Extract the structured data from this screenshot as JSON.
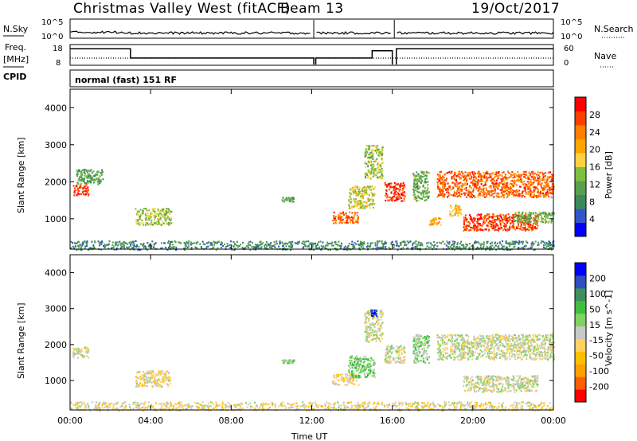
{
  "header": {
    "title": "Christmas Valley West (fitACF)",
    "beam": "Beam 13",
    "date": "19/Oct/2017"
  },
  "panels": {
    "nsky_label": "N.Sky",
    "nsky_ticks": [
      "10^5",
      "10^0"
    ],
    "nsearch_label": "N.Search",
    "nsearch_ticks": [
      "10^5",
      "10^0"
    ],
    "freq_label": "Freq.",
    "freq_unit": "[MHz]",
    "freq_ticks": [
      "18",
      "8"
    ],
    "nave_label": "Nave",
    "nave_ticks": [
      "60",
      "0"
    ],
    "cpid_label": "CPID",
    "cpid_text": "normal (fast) 151 RF"
  },
  "colors": {
    "power": [
      "#0000ff",
      "#3355cc",
      "#3b8a5a",
      "#58a050",
      "#7fbf3f",
      "#ffd23f",
      "#ffa500",
      "#ff7f00",
      "#ff3f00",
      "#ff0000"
    ],
    "velocity": [
      "#ff0000",
      "#ff5f00",
      "#ff9f00",
      "#ffbf00",
      "#ffd25f",
      "#c8c8c8",
      "#7fd35f",
      "#3fbf3f",
      "#3f8f5f",
      "#2f4fbf",
      "#0000ff"
    ]
  },
  "chart_data": [
    {
      "type": "heatmap",
      "name": "power",
      "ylabel": "Slant Range [km]",
      "colorbar_label": "Power [dB]",
      "colorbar_ticks": [
        "28",
        "24",
        "20",
        "16",
        "12",
        "8",
        "4"
      ],
      "colorbar_range": [
        0,
        30
      ],
      "x_ticks": [
        "00:00",
        "04:00",
        "08:00",
        "12:00",
        "16:00",
        "20:00",
        "00:00"
      ],
      "x_range_hours": [
        0,
        24
      ],
      "y_ticks": [
        "4000",
        "3000",
        "2000",
        "1000"
      ],
      "y_range_km": [
        180,
        4500
      ],
      "regions": [
        {
          "t": [
            0.1,
            0.9
          ],
          "r": [
            1650,
            1950
          ],
          "v": 26
        },
        {
          "t": [
            0.3,
            1.6
          ],
          "r": [
            1950,
            2350
          ],
          "v": 10
        },
        {
          "t": [
            3.2,
            5.0
          ],
          "r": [
            850,
            1300
          ],
          "v": 14
        },
        {
          "t": [
            10.5,
            11.1
          ],
          "r": [
            1480,
            1600
          ],
          "v": 10
        },
        {
          "t": [
            13.0,
            14.3
          ],
          "r": [
            900,
            1200
          ],
          "v": 24
        },
        {
          "t": [
            13.8,
            15.1
          ],
          "r": [
            1300,
            1900
          ],
          "v": 16
        },
        {
          "t": [
            14.6,
            15.5
          ],
          "r": [
            2100,
            3000
          ],
          "v": 14
        },
        {
          "t": [
            15.6,
            16.6
          ],
          "r": [
            1500,
            2000
          ],
          "v": 26
        },
        {
          "t": [
            17.0,
            17.8
          ],
          "r": [
            1500,
            2300
          ],
          "v": 12
        },
        {
          "t": [
            17.8,
            18.4
          ],
          "r": [
            850,
            1050
          ],
          "v": 20
        },
        {
          "t": [
            18.2,
            24.0
          ],
          "r": [
            1600,
            2300
          ],
          "v": 24
        },
        {
          "t": [
            18.8,
            19.4
          ],
          "r": [
            1100,
            1400
          ],
          "v": 18
        },
        {
          "t": [
            19.5,
            23.2
          ],
          "r": [
            700,
            1150
          ],
          "v": 26
        },
        {
          "t": [
            22.0,
            24.0
          ],
          "r": [
            900,
            1200
          ],
          "v": 12
        },
        {
          "t": [
            0.0,
            24.0
          ],
          "r": [
            180,
            420
          ],
          "v": 8
        }
      ]
    },
    {
      "type": "heatmap",
      "name": "velocity",
      "ylabel": "Slant Range [km]",
      "colorbar_label": "Velocity [m s^-1]",
      "colorbar_ticks": [
        "200",
        "100",
        "50",
        "15",
        "-15",
        "-50",
        "-100",
        "-200"
      ],
      "colorbar_range": [
        -250,
        250
      ],
      "x_ticks": [
        "00:00",
        "04:00",
        "08:00",
        "12:00",
        "16:00",
        "20:00",
        "00:00"
      ],
      "xlabel": "Time UT",
      "x_range_hours": [
        0,
        24
      ],
      "y_ticks": [
        "4000",
        "3000",
        "2000",
        "1000"
      ],
      "y_range_km": [
        180,
        4500
      ],
      "regions": [
        {
          "t": [
            0.1,
            0.9
          ],
          "r": [
            1650,
            1950
          ],
          "v": 0
        },
        {
          "t": [
            3.2,
            5.0
          ],
          "r": [
            850,
            1300
          ],
          "v": -30
        },
        {
          "t": [
            10.5,
            11.1
          ],
          "r": [
            1480,
            1600
          ],
          "v": 40
        },
        {
          "t": [
            13.0,
            14.3
          ],
          "r": [
            900,
            1200
          ],
          "v": -40
        },
        {
          "t": [
            13.8,
            15.1
          ],
          "r": [
            1100,
            1700
          ],
          "v": 60
        },
        {
          "t": [
            14.6,
            15.5
          ],
          "r": [
            2100,
            3000
          ],
          "v": 0
        },
        {
          "t": [
            14.9,
            15.2
          ],
          "r": [
            2800,
            3000
          ],
          "v": 200
        },
        {
          "t": [
            15.6,
            16.6
          ],
          "r": [
            1500,
            2000
          ],
          "v": 0
        },
        {
          "t": [
            17.0,
            17.8
          ],
          "r": [
            1500,
            2300
          ],
          "v": 40
        },
        {
          "t": [
            18.2,
            24.0
          ],
          "r": [
            1600,
            2300
          ],
          "v": 0
        },
        {
          "t": [
            19.5,
            23.2
          ],
          "r": [
            700,
            1150
          ],
          "v": 0
        },
        {
          "t": [
            0.0,
            24.0
          ],
          "r": [
            180,
            420
          ],
          "v": -30
        }
      ]
    }
  ]
}
